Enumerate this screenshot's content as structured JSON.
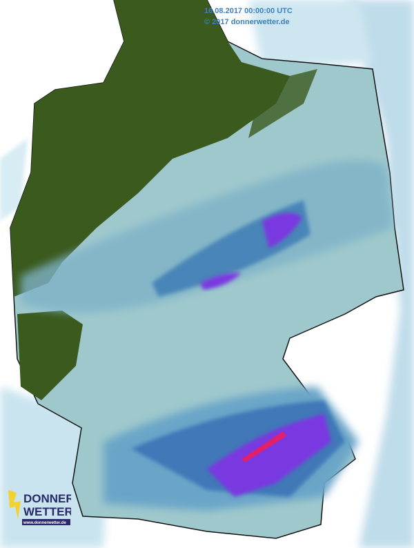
{
  "map": {
    "timestamp": "16.08.2017 00:00:00 UTC",
    "copyright": "© 2017 donnerwetter.de",
    "colors": {
      "land": "#9fc8cc",
      "no_data_green": "#3b5a1e",
      "light_rain": "#aed6e6",
      "moderate_rain": "#6aa5c8",
      "heavy_rain": "#3f78b8",
      "very_heavy": "#7a38e0",
      "extreme": "#e0206a",
      "timestamp_text": "#3d7fbf"
    }
  },
  "logo": {
    "line1": "DONNER",
    "line2": "WETTER",
    "url": "www.donnerwetter.de"
  }
}
